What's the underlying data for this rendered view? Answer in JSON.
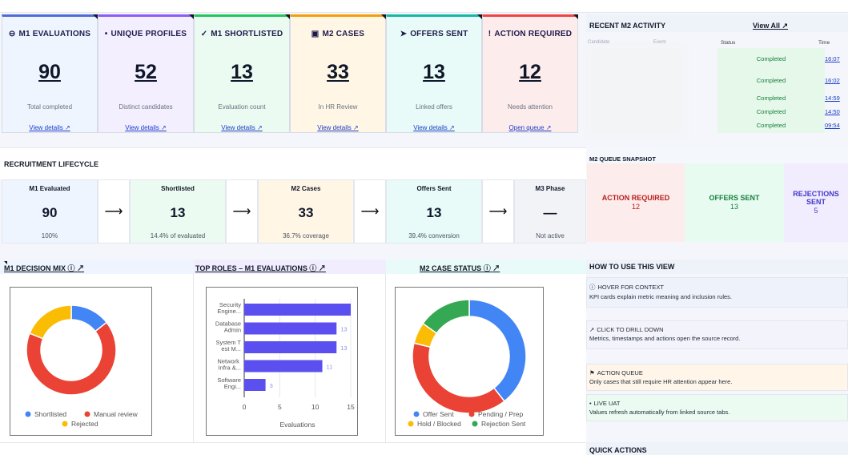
{
  "kpis": [
    {
      "icon": "⊖",
      "icon_name": "minus-circle-icon",
      "title": "M1 EVALUATIONS",
      "value": "90",
      "subtitle": "Total completed",
      "link": "View details ↗",
      "bg": "#eef5ff",
      "top": "#4f6bd8"
    },
    {
      "icon": "•",
      "icon_name": "dot-icon",
      "title": "UNIQUE PROFILES",
      "value": "52",
      "subtitle": "Distinct candidates",
      "link": "View details ↗",
      "bg": "#f3efff",
      "top": "#8b5cf6"
    },
    {
      "icon": "✓",
      "icon_name": "check-icon",
      "title": "M1 SHORTLISTED",
      "value": "13",
      "subtitle": "Evaluation count",
      "link": "View details ↗",
      "bg": "#ecfbf1",
      "top": "#22c55e"
    },
    {
      "icon": "▣",
      "icon_name": "card-icon",
      "title": "M2 CASES",
      "value": "33",
      "subtitle": "In HR Review",
      "link": "View details ↗",
      "bg": "#fff6e6",
      "top": "#f59e0b"
    },
    {
      "icon": "➤",
      "icon_name": "send-icon",
      "title": "OFFERS SENT",
      "value": "13",
      "subtitle": "Linked offers",
      "link": "View details ↗",
      "bg": "#e8fbf8",
      "top": "#14b8a6"
    },
    {
      "icon": "!",
      "icon_name": "alert-icon",
      "title": "ACTION REQUIRED",
      "value": "12",
      "subtitle": "Needs attention",
      "link": "Open queue ↗",
      "bg": "#fdecec",
      "top": "#ef4444"
    }
  ],
  "activity": {
    "title": "RECENT M2 ACTIVITY",
    "view_all": "View All ↗",
    "col_candidate": "Candidate",
    "col_event": "Event",
    "col_status": "Status",
    "col_time": "Time",
    "rows": [
      {
        "status": "Completed",
        "time": "16:07"
      },
      {
        "status": "Completed",
        "time": "16:02"
      },
      {
        "status": "Completed",
        "time": "14:59"
      },
      {
        "status": "Completed",
        "time": "14:50"
      },
      {
        "status": "Completed",
        "time": "09:54"
      }
    ]
  },
  "lifecycle": {
    "title": "RECRUITMENT LIFECYCLE",
    "arrow": "⟶",
    "stages": [
      {
        "title": "M1 Evaluated",
        "value": "90",
        "subtitle": "100%",
        "bg": "#eef5ff"
      },
      {
        "title": "Shortlisted",
        "value": "13",
        "subtitle": "14.4% of evaluated",
        "bg": "#ecfbf1"
      },
      {
        "title": "M2 Cases",
        "value": "33",
        "subtitle": "36.7% coverage",
        "bg": "#fff6e6"
      },
      {
        "title": "Offers Sent",
        "value": "13",
        "subtitle": "39.4% conversion",
        "bg": "#e8fbf8"
      },
      {
        "title": "M3 Phase",
        "value": "—",
        "subtitle": "Not active",
        "bg": "#f1f3f7"
      }
    ]
  },
  "queue": {
    "title": "M2 QUEUE SNAPSHOT",
    "cards": [
      {
        "label": "ACTION REQUIRED",
        "value": "12",
        "color": "#b91c1c",
        "bg": "#fdecec"
      },
      {
        "label": "OFFERS SENT",
        "value": "13",
        "color": "#15803d",
        "bg": "#e8fbf1"
      },
      {
        "label": "REJECTIONS SENT",
        "value": "5",
        "color": "#4338ca",
        "bg": "#f1edff"
      }
    ]
  },
  "panels": {
    "decision_mix": "M1 DECISION MIX",
    "top_roles": "TOP ROLES – M1 EVALUATIONS",
    "case_status": "M2 CASE STATUS",
    "info_icon": "ⓘ",
    "open_icon": "↗"
  },
  "howto": {
    "title": "HOW TO USE THIS VIEW",
    "items": [
      {
        "icon": "ⓘ",
        "title": "HOVER FOR CONTEXT",
        "desc": "KPI cards explain metric meaning and inclusion rules.",
        "bg": "#eef3fb"
      },
      {
        "icon": "↗",
        "title": "CLICK TO DRILL DOWN",
        "desc": "Metrics, timestamps and actions open the source record.",
        "bg": "#f3f3fb"
      },
      {
        "icon": "⚑",
        "title": "ACTION QUEUE",
        "desc": "Only cases that still require HR attention appear here.",
        "bg": "#fff6e9"
      },
      {
        "icon": "•",
        "title": "LIVE UAT",
        "desc": "Values refresh automatically from linked source tabs.",
        "bg": "#ecfbf1"
      }
    ]
  },
  "quick_actions": {
    "title": "QUICK ACTIONS"
  },
  "chart_data": [
    {
      "type": "pie",
      "donut": true,
      "labels": [
        "Shortlisted",
        "Manual review",
        "Rejected"
      ],
      "values": [
        13,
        60,
        17
      ],
      "colors": [
        "#4285f4",
        "#ea4335",
        "#fbbc04"
      ]
    },
    {
      "type": "bar",
      "orientation": "horizontal",
      "categories": [
        "Security Engine...",
        "Database Admin",
        "System Test M...",
        "Network Infra &...",
        "Software Engi..."
      ],
      "values": [
        15,
        13,
        13,
        11,
        3
      ],
      "data_labels": [
        "",
        "13",
        "13",
        "11",
        "3"
      ],
      "xlabel": "Evaluations",
      "xticks": [
        "0",
        "5",
        "10",
        "15"
      ],
      "xlim": [
        0,
        15
      ],
      "color": "#5b4ff0"
    },
    {
      "type": "pie",
      "donut": true,
      "labels": [
        "Offer Sent",
        "Pending / Prep",
        "Hold / Blocked",
        "Rejection Sent"
      ],
      "values": [
        13,
        13,
        2,
        5
      ],
      "colors": [
        "#4285f4",
        "#ea4335",
        "#fbbc04",
        "#34a853"
      ]
    }
  ]
}
